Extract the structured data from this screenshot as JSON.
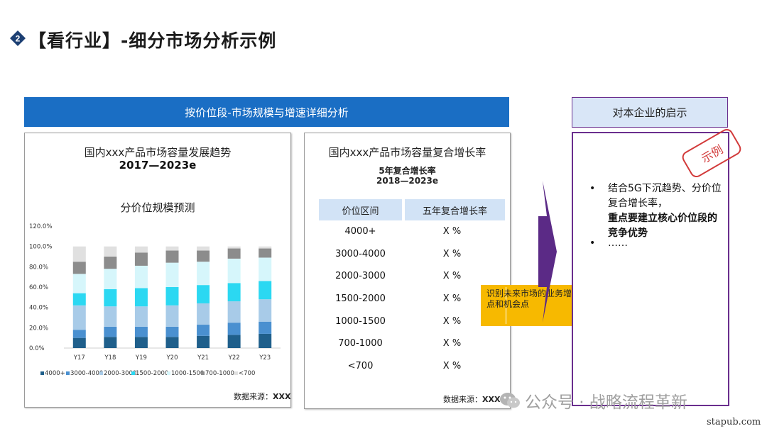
{
  "header": {
    "badge_number": "2",
    "title": "【看行业】-细分市场分析示例"
  },
  "left_banner": {
    "title": "按价位段-市场规模与增速详细分析"
  },
  "chart_panel": {
    "title_line1": "国内xxx产品市场容量发展趋势",
    "title_line2": "2017—2023e",
    "source_label": "数据来源：",
    "source_value": "XXX"
  },
  "chart_data": {
    "type": "bar",
    "stacked": true,
    "title": "分价位规模预测",
    "xlabel": "",
    "ylabel": "",
    "ylim": [
      0,
      120
    ],
    "yticks": [
      "0.0%",
      "20.0%",
      "40.0%",
      "60.0%",
      "80.0%",
      "100.0%",
      "120.0%"
    ],
    "ytick_values": [
      0,
      20,
      40,
      60,
      80,
      100,
      120
    ],
    "categories": [
      "Y17",
      "Y18",
      "Y19",
      "Y20",
      "Y21",
      "Y22",
      "Y23"
    ],
    "legend_position": "bottom",
    "series": [
      {
        "name": "4000+",
        "color": "#1f5f8b",
        "values": [
          10,
          11,
          11,
          11,
          12,
          13,
          14
        ]
      },
      {
        "name": "3000-4000",
        "color": "#4a90d0",
        "values": [
          8,
          10,
          10,
          10,
          11,
          12,
          12
        ]
      },
      {
        "name": "2000-3000",
        "color": "#a8cbe8",
        "values": [
          24,
          20,
          20,
          21,
          21,
          21,
          22
        ]
      },
      {
        "name": "1500-2000",
        "color": "#2bd8f2",
        "values": [
          12,
          17,
          18,
          18,
          18,
          18,
          18
        ]
      },
      {
        "name": "1000-1500",
        "color": "#d6f6fb",
        "values": [
          19,
          20,
          22,
          24,
          23,
          24,
          23
        ]
      },
      {
        "name": "700-1000",
        "color": "#8c8c8c",
        "values": [
          12,
          12,
          13,
          12,
          11,
          10,
          9
        ]
      },
      {
        "name": "<700",
        "color": "#e0e0e0",
        "values": [
          15,
          10,
          6,
          4,
          4,
          2,
          2
        ]
      }
    ]
  },
  "cagr_panel": {
    "title": "国内xxx产品市场容量复合增长率",
    "subtitle_line1": "5年复合增长率",
    "subtitle_line2": "2018—2023e",
    "col_headers": [
      "价位区间",
      "五年复合增长率"
    ],
    "rows": [
      [
        "4000+",
        "X %"
      ],
      [
        "3000-4000",
        "X %"
      ],
      [
        "2000-3000",
        "X %"
      ],
      [
        "1500-2000",
        "X %"
      ],
      [
        "1000-1500",
        "X %"
      ],
      [
        "700-1000",
        "X %"
      ],
      [
        "<700",
        "X %"
      ]
    ],
    "source_label": "数据来源：",
    "source_value": "XXX"
  },
  "callout": {
    "text": "识别未来市场的业务增长点和机会点"
  },
  "right_panel": {
    "header": "对本企业的启示",
    "stamp": "示例",
    "bullet_symbol": "•",
    "bullet1_line1": "结合5G下沉趋势、分价位复合增长率，",
    "bullet1_line2": "重点要建立核心价位段的竞争优势",
    "bullet2": "……"
  },
  "watermark": {
    "text": "公众号 · 战略流程革新"
  },
  "footer": {
    "site": "stapub.com"
  },
  "colors": {
    "banner": "#1a6ec4",
    "accent_purple": "#6a2e8e",
    "callout": "#f7b900",
    "stamp": "#d23a3a"
  }
}
